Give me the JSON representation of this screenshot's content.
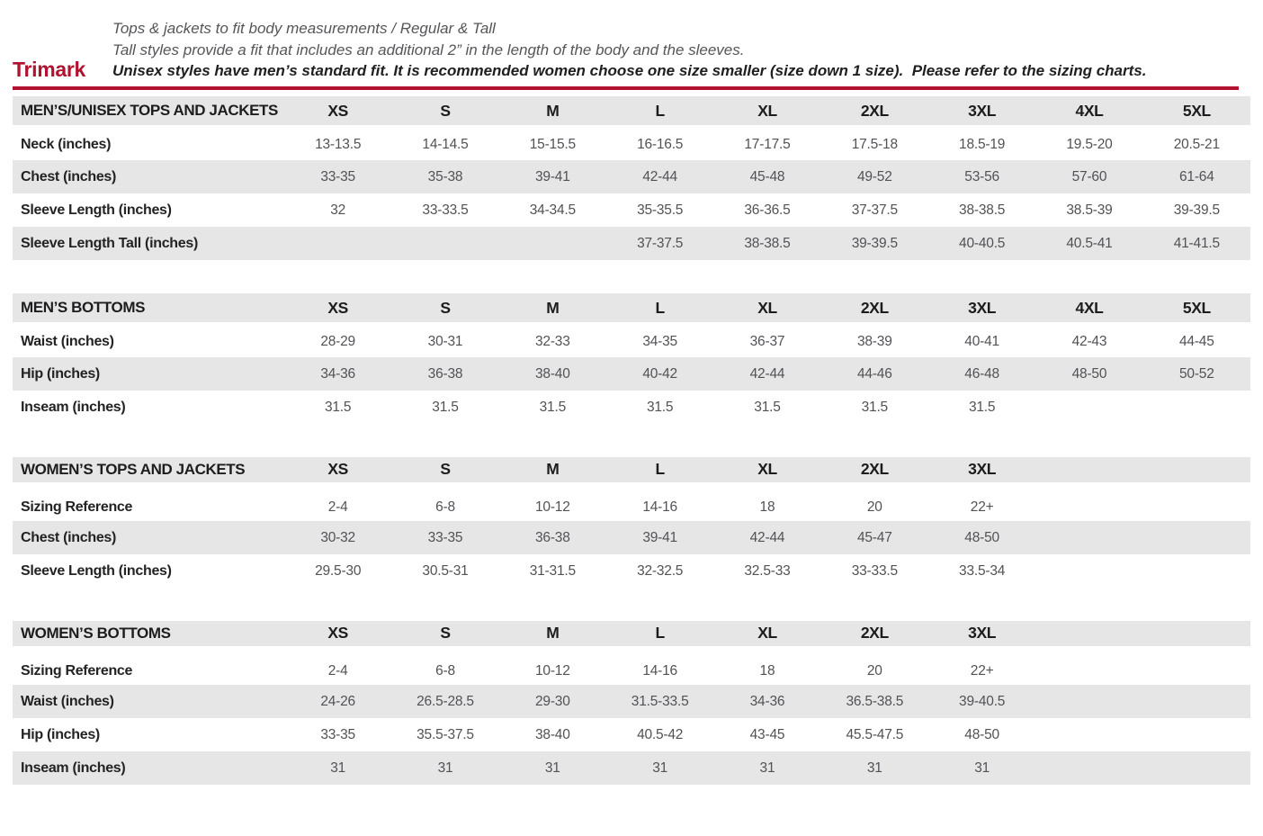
{
  "brand": "Trimark",
  "header": {
    "line1": "Tops & jackets to fit body measurements / Regular & Tall",
    "line2": "Tall styles provide a fit that includes an additional 2” in the length of the body and the sleeves.",
    "line3": "Unisex styles have men’s standard fit. It is recommended women choose one size smaller (size down 1 size).  Please refer to the sizing charts."
  },
  "colors": {
    "accent_red": "#b11230",
    "row_gray": "#e6e6e6",
    "label_dark": "#232325",
    "value_gray": "#515256"
  },
  "column_count": 9,
  "tables": [
    {
      "id": "mens-unisex-tops-and-jackets",
      "title": "MEN’S/UNISEX TOPS AND JACKETS",
      "header_gap": "small",
      "sizes": [
        "XS",
        "S",
        "M",
        "L",
        "XL",
        "2XL",
        "3XL",
        "4XL",
        "5XL"
      ],
      "rows": [
        {
          "label": "Neck (inches)",
          "values": [
            "13-13.5",
            "14-14.5",
            "15-15.5",
            "16-16.5",
            "17-17.5",
            "17.5-18",
            "18.5-19",
            "19.5-20",
            "20.5-21"
          ]
        },
        {
          "label": "Chest (inches)",
          "values": [
            "33-35",
            "35-38",
            "39-41",
            "42-44",
            "45-48",
            "49-52",
            "53-56",
            "57-60",
            "61-64"
          ]
        },
        {
          "label": "Sleeve Length (inches)",
          "values": [
            "32",
            "33-33.5",
            "34-34.5",
            "35-35.5",
            "36-36.5",
            "37-37.5",
            "38-38.5",
            "38.5-39",
            "39-39.5"
          ]
        },
        {
          "label": "Sleeve Length Tall (inches)",
          "values": [
            "",
            "",
            "",
            "37-37.5",
            "38-38.5",
            "39-39.5",
            "40-40.5",
            "40.5-41",
            "41-41.5"
          ]
        }
      ]
    },
    {
      "id": "mens-bottoms",
      "title": "MEN’S BOTTOMS",
      "header_gap": "small",
      "sizes": [
        "XS",
        "S",
        "M",
        "L",
        "XL",
        "2XL",
        "3XL",
        "4XL",
        "5XL"
      ],
      "rows": [
        {
          "label": "Waist (inches)",
          "values": [
            "28-29",
            "30-31",
            "32-33",
            "34-35",
            "36-37",
            "38-39",
            "40-41",
            "42-43",
            "44-45"
          ]
        },
        {
          "label": "Hip (inches)",
          "values": [
            "34-36",
            "36-38",
            "38-40",
            "40-42",
            "42-44",
            "44-46",
            "46-48",
            "48-50",
            "50-52"
          ]
        },
        {
          "label": "Inseam (inches)",
          "values": [
            "31.5",
            "31.5",
            "31.5",
            "31.5",
            "31.5",
            "31.5",
            "31.5",
            "",
            ""
          ]
        }
      ]
    },
    {
      "id": "womens-tops-and-jackets",
      "title": "WOMEN’S TOPS AND JACKETS",
      "header_gap": "large",
      "sizes": [
        "XS",
        "S",
        "M",
        "L",
        "XL",
        "2XL",
        "3XL",
        "",
        ""
      ],
      "rows": [
        {
          "label": "Sizing Reference",
          "values": [
            "2-4",
            "6-8",
            "10-12",
            "14-16",
            "18",
            "20",
            "22+",
            "",
            ""
          ]
        },
        {
          "label": "Chest (inches)",
          "values": [
            "30-32",
            "33-35",
            "36-38",
            "39-41",
            "42-44",
            "45-47",
            "48-50",
            "",
            ""
          ]
        },
        {
          "label": "Sleeve Length (inches)",
          "values": [
            "29.5-30",
            "30.5-31",
            "31-31.5",
            "32-32.5",
            "32.5-33",
            "33-33.5",
            "33.5-34",
            "",
            ""
          ]
        }
      ]
    },
    {
      "id": "womens-bottoms",
      "title": "WOMEN’S BOTTOMS",
      "header_gap": "large",
      "sizes": [
        "XS",
        "S",
        "M",
        "L",
        "XL",
        "2XL",
        "3XL",
        "",
        ""
      ],
      "rows": [
        {
          "label": "Sizing Reference",
          "values": [
            "2-4",
            "6-8",
            "10-12",
            "14-16",
            "18",
            "20",
            "22+",
            "",
            ""
          ]
        },
        {
          "label": "Waist (inches)",
          "values": [
            "24-26",
            "26.5-28.5",
            "29-30",
            "31.5-33.5",
            "34-36",
            "36.5-38.5",
            "39-40.5",
            "",
            ""
          ]
        },
        {
          "label": "Hip (inches)",
          "values": [
            "33-35",
            "35.5-37.5",
            "38-40",
            "40.5-42",
            "43-45",
            "45.5-47.5",
            "48-50",
            "",
            ""
          ]
        },
        {
          "label": "Inseam (inches)",
          "values": [
            "31",
            "31",
            "31",
            "31",
            "31",
            "31",
            "31",
            "",
            ""
          ]
        }
      ]
    }
  ]
}
